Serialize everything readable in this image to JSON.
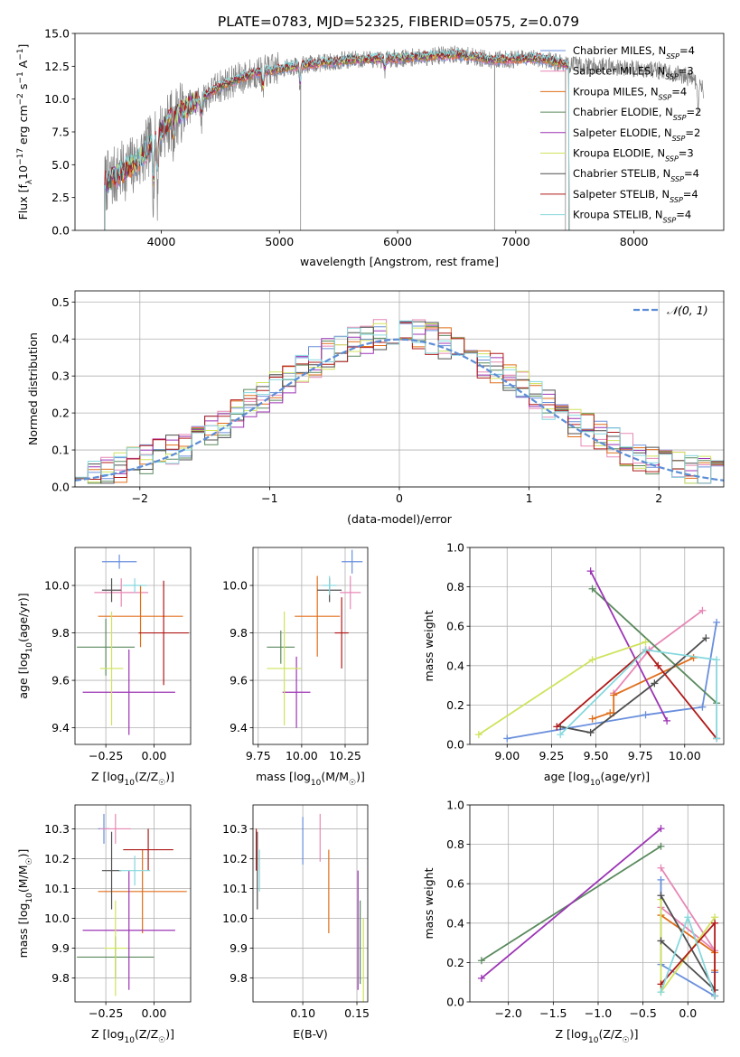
{
  "figure_title": "PLATE=0783, MJD=52325, FIBERID=0575, z=0.079",
  "colors": {
    "Chabrier MILES": "#6a8fdc",
    "Salpeter MILES": "#e787b5",
    "Kroupa MILES": "#e06e1a",
    "Chabrier ELODIE": "#5a8a5e",
    "Salpeter ELODIE": "#9c35b5",
    "Kroupa ELODIE": "#cfe35c",
    "Chabrier STELIB": "#4f4f4f",
    "Salpeter STELIB": "#b01a1a",
    "Kroupa STELIB": "#86d8dd",
    "data": "#808080",
    "normal": "#5b8dd6"
  },
  "chart_data": [
    {
      "id": "spectrum",
      "type": "line",
      "title": "PLATE=0783, MJD=52325, FIBERID=0575, z=0.079",
      "xlabel": "wavelength [Angstrom, rest frame]",
      "ylabel": "Flux [fλ10⁻¹⁷ erg cm⁻² s⁻¹ A⁻¹]",
      "xlim": [
        3270,
        8760
      ],
      "ylim": [
        0,
        15
      ],
      "xticks": [
        "4000",
        "5000",
        "6000",
        "7000",
        "8000"
      ],
      "xtick_values": [
        4000,
        5000,
        6000,
        7000,
        8000
      ],
      "yticks": [
        "0.0",
        "2.5",
        "5.0",
        "7.5",
        "10.0",
        "12.5",
        "15.0"
      ],
      "ytick_values": [
        0,
        2.5,
        5,
        7.5,
        10,
        12.5,
        15
      ],
      "legend_position": "right",
      "legend": [
        {
          "label": "Chabrier MILES, N",
          "sub": "SSP",
          "suffix": "=4",
          "key": "Chabrier MILES"
        },
        {
          "label": "Salpeter MILES, N",
          "sub": "SSP",
          "suffix": "=3",
          "key": "Salpeter MILES"
        },
        {
          "label": "Kroupa MILES, N",
          "sub": "SSP",
          "suffix": "=4",
          "key": "Kroupa MILES"
        },
        {
          "label": "Chabrier ELODIE, N",
          "sub": "SSP",
          "suffix": "=2",
          "key": "Chabrier ELODIE"
        },
        {
          "label": "Salpeter ELODIE, N",
          "sub": "SSP",
          "suffix": "=2",
          "key": "Salpeter ELODIE"
        },
        {
          "label": "Kroupa ELODIE, N",
          "sub": "SSP",
          "suffix": "=3",
          "key": "Kroupa ELODIE"
        },
        {
          "label": "Chabrier STELIB, N",
          "sub": "SSP",
          "suffix": "=4",
          "key": "Chabrier STELIB"
        },
        {
          "label": "Salpeter STELIB, N",
          "sub": "SSP",
          "suffix": "=4",
          "key": "Salpeter STELIB"
        },
        {
          "label": "Kroupa STELIB, N",
          "sub": "SSP",
          "suffix": "=4",
          "key": "Kroupa STELIB"
        }
      ],
      "continuum": [
        [
          3520,
          3.6
        ],
        [
          3800,
          5.2
        ],
        [
          3950,
          7.0
        ],
        [
          4000,
          7.6
        ],
        [
          4100,
          8.6
        ],
        [
          4300,
          9.8
        ],
        [
          4500,
          11.0
        ],
        [
          4800,
          12.0
        ],
        [
          5200,
          12.6
        ],
        [
          5600,
          13.0
        ],
        [
          6000,
          13.1
        ],
        [
          6500,
          13.4
        ],
        [
          6800,
          13.0
        ],
        [
          7200,
          13.1
        ],
        [
          7450,
          12.6
        ],
        [
          7800,
          12.5
        ],
        [
          8200,
          12.2
        ],
        [
          8500,
          11.6
        ],
        [
          8600,
          10.5
        ]
      ],
      "absorption": [
        [
          3934,
          3.5
        ],
        [
          3968,
          4.0
        ],
        [
          4101,
          1.5
        ],
        [
          4340,
          1.5
        ],
        [
          4861,
          1.5
        ],
        [
          5175,
          1.5
        ],
        [
          5890,
          1.0
        ],
        [
          8542,
          1.5
        ],
        [
          8662,
          1.5
        ]
      ],
      "spikes_down": [
        5180,
        6820,
        7420
      ],
      "model_range": [
        3520,
        7450
      ],
      "data_range": [
        3520,
        8590
      ]
    },
    {
      "id": "residual_histogram",
      "type": "step",
      "xlabel": "(data-model)/error",
      "ylabel": "Normed distribution",
      "xlim": [
        -2.5,
        2.5
      ],
      "ylim": [
        0,
        0.53
      ],
      "xticks": [
        "−2",
        "−1",
        "0",
        "1",
        "2"
      ],
      "xtick_values": [
        -2,
        -1,
        0,
        1,
        2
      ],
      "yticks": [
        "0.0",
        "0.1",
        "0.2",
        "0.3",
        "0.4",
        "0.5"
      ],
      "ytick_values": [
        0,
        0.1,
        0.2,
        0.3,
        0.4,
        0.5
      ],
      "bin_width": 0.1,
      "x_start": -2.5,
      "legend_position": "top-right",
      "legend_label": "𝒩(0, 1)"
    },
    {
      "id": "age_vs_Z",
      "type": "errorbar",
      "xlabel": "Z [log10(Z/Z☉)]",
      "ylabel": "age [log10(age/yr)]",
      "xlim": [
        -0.41,
        0.19
      ],
      "ylim": [
        9.33,
        10.16
      ],
      "xticks": [
        "−0.25",
        "0.00"
      ],
      "xtick_values": [
        -0.25,
        0.0
      ],
      "yticks": [
        "9.4",
        "9.6",
        "9.8",
        "10.0"
      ],
      "ytick_values": [
        9.4,
        9.6,
        9.8,
        10.0
      ],
      "points": [
        {
          "key": "Chabrier MILES",
          "x": -0.18,
          "xerr": 0.09,
          "y": 10.1,
          "yerr": 0.03
        },
        {
          "key": "Salpeter MILES",
          "x": -0.17,
          "xerr": 0.14,
          "y": 9.97,
          "yerr": 0.06
        },
        {
          "key": "Kroupa MILES",
          "x": -0.07,
          "xerr": 0.22,
          "y": 9.87,
          "yerr": 0.13
        },
        {
          "key": "Chabrier ELODIE",
          "x": -0.25,
          "xerr": 0.15,
          "y": 9.74,
          "yerr": 0.12
        },
        {
          "key": "Salpeter ELODIE",
          "x": -0.13,
          "xerr": 0.24,
          "y": 9.55,
          "yerr": 0.18
        },
        {
          "key": "Kroupa ELODIE",
          "x": -0.22,
          "xerr": 0.06,
          "y": 9.65,
          "yerr": 0.24
        },
        {
          "key": "Chabrier STELIB",
          "x": -0.22,
          "xerr": 0.05,
          "y": 9.98,
          "yerr": 0.05
        },
        {
          "key": "Salpeter STELIB",
          "x": 0.05,
          "xerr": 0.13,
          "y": 9.8,
          "yerr": 0.22
        },
        {
          "key": "Kroupa STELIB",
          "x": -0.1,
          "xerr": 0.06,
          "y": 10.0,
          "yerr": 0.03
        }
      ]
    },
    {
      "id": "age_vs_mass",
      "type": "errorbar",
      "xlabel": "mass [log10(M/M☉)]",
      "ylabel": "",
      "xlim": [
        9.72,
        10.38
      ],
      "ylim": [
        9.33,
        10.16
      ],
      "xticks": [
        "9.75",
        "10.00",
        "10.25"
      ],
      "xtick_values": [
        9.75,
        10.0,
        10.25
      ],
      "yticks": [
        "9.4",
        "9.6",
        "9.8",
        "10.0"
      ],
      "ytick_values": [
        9.4,
        9.6,
        9.8,
        10.0
      ],
      "points": [
        {
          "key": "Chabrier MILES",
          "x": 10.29,
          "xerr": 0.06,
          "y": 10.1,
          "yerr": 0.05
        },
        {
          "key": "Salpeter MILES",
          "x": 10.28,
          "xerr": 0.06,
          "y": 9.97,
          "yerr": 0.07
        },
        {
          "key": "Kroupa MILES",
          "x": 10.09,
          "xerr": 0.13,
          "y": 9.87,
          "yerr": 0.17
        },
        {
          "key": "Chabrier ELODIE",
          "x": 9.88,
          "xerr": 0.08,
          "y": 9.74,
          "yerr": 0.07
        },
        {
          "key": "Salpeter ELODIE",
          "x": 9.97,
          "xerr": 0.08,
          "y": 9.55,
          "yerr": 0.15
        },
        {
          "key": "Kroupa ELODIE",
          "x": 9.9,
          "xerr": 0.1,
          "y": 9.65,
          "yerr": 0.24
        },
        {
          "key": "Chabrier STELIB",
          "x": 10.16,
          "xerr": 0.07,
          "y": 9.98,
          "yerr": 0.05
        },
        {
          "key": "Salpeter STELIB",
          "x": 10.23,
          "xerr": 0.04,
          "y": 9.8,
          "yerr": 0.15
        },
        {
          "key": "Kroupa STELIB",
          "x": 10.16,
          "xerr": 0.04,
          "y": 10.0,
          "yerr": 0.04
        }
      ]
    },
    {
      "id": "weight_vs_age",
      "type": "line",
      "xlabel": "age [log10(age/yr)]",
      "ylabel": "mass weight",
      "xlim": [
        8.79,
        10.22
      ],
      "ylim": [
        0,
        1.0
      ],
      "xticks": [
        "9.00",
        "9.25",
        "9.50",
        "9.75",
        "10.00"
      ],
      "xtick_values": [
        9.0,
        9.25,
        9.5,
        9.75,
        10.0
      ],
      "yticks": [
        "0.0",
        "0.2",
        "0.4",
        "0.6",
        "0.8",
        "1.0"
      ],
      "ytick_values": [
        0,
        0.2,
        0.4,
        0.6,
        0.8,
        1.0
      ],
      "series": [
        {
          "key": "Chabrier MILES",
          "x": [
            9.0,
            9.78,
            10.1,
            10.18
          ],
          "y": [
            0.03,
            0.15,
            0.19,
            0.62
          ]
        },
        {
          "key": "Salpeter MILES",
          "x": [
            9.6,
            9.8,
            10.1
          ],
          "y": [
            0.26,
            0.48,
            0.68
          ]
        },
        {
          "key": "Kroupa MILES",
          "x": [
            9.48,
            9.58,
            9.6,
            9.6,
            10.05
          ],
          "y": [
            0.13,
            0.16,
            0.16,
            0.25,
            0.44
          ]
        },
        {
          "key": "Chabrier ELODIE",
          "x": [
            9.48,
            10.18
          ],
          "y": [
            0.79,
            0.21
          ]
        },
        {
          "key": "Salpeter ELODIE",
          "x": [
            9.47,
            9.9
          ],
          "y": [
            0.88,
            0.12
          ]
        },
        {
          "key": "Kroupa ELODIE",
          "x": [
            8.84,
            9.48,
            9.78
          ],
          "y": [
            0.05,
            0.43,
            0.52
          ]
        },
        {
          "key": "Chabrier STELIB",
          "x": [
            9.3,
            9.47,
            9.83,
            10.12
          ],
          "y": [
            0.09,
            0.06,
            0.31,
            0.54
          ]
        },
        {
          "key": "Salpeter STELIB",
          "x": [
            9.28,
            9.78,
            9.85,
            10.18
          ],
          "y": [
            0.09,
            0.48,
            0.4,
            0.03
          ]
        },
        {
          "key": "Kroupa STELIB",
          "x": [
            9.3,
            9.78,
            10.18,
            10.18
          ],
          "y": [
            0.05,
            0.48,
            0.43,
            0.03
          ]
        }
      ]
    },
    {
      "id": "mass_vs_Z",
      "type": "errorbar",
      "xlabel": "Z [log10(Z/Z☉)]",
      "ylabel": "mass [log10(M/M☉)]",
      "xlim": [
        -0.41,
        0.19
      ],
      "ylim": [
        9.72,
        10.38
      ],
      "xticks": [
        "−0.25",
        "0.00"
      ],
      "xtick_values": [
        -0.25,
        0.0
      ],
      "yticks": [
        "9.8",
        "9.9",
        "10.0",
        "10.1",
        "10.2",
        "10.3"
      ],
      "ytick_values": [
        9.8,
        9.9,
        10.0,
        10.1,
        10.2,
        10.3
      ],
      "points": [
        {
          "key": "Chabrier MILES",
          "x": -0.26,
          "xerr": 0.03,
          "y": 10.3,
          "yerr": 0.05
        },
        {
          "key": "Salpeter MILES",
          "x": -0.2,
          "xerr": 0.08,
          "y": 10.3,
          "yerr": 0.05
        },
        {
          "key": "Kroupa MILES",
          "x": -0.06,
          "xerr": 0.23,
          "y": 10.09,
          "yerr": 0.14
        },
        {
          "key": "Chabrier ELODIE",
          "x": -0.2,
          "xerr": 0.2,
          "y": 9.87,
          "yerr": 0.07
        },
        {
          "key": "Salpeter ELODIE",
          "x": -0.13,
          "xerr": 0.24,
          "y": 9.96,
          "yerr": 0.2
        },
        {
          "key": "Kroupa ELODIE",
          "x": -0.2,
          "xerr": 0.06,
          "y": 9.9,
          "yerr": 0.16
        },
        {
          "key": "Chabrier STELIB",
          "x": -0.22,
          "xerr": 0.05,
          "y": 10.16,
          "yerr": 0.13
        },
        {
          "key": "Salpeter STELIB",
          "x": -0.03,
          "xerr": 0.13,
          "y": 10.23,
          "yerr": 0.07
        },
        {
          "key": "Kroupa STELIB",
          "x": -0.1,
          "xerr": 0.08,
          "y": 10.16,
          "yerr": 0.05
        }
      ]
    },
    {
      "id": "mass_vs_EBV",
      "type": "errorbar",
      "xlabel": "E(B-V)",
      "ylabel": "",
      "xlim": [
        0.054,
        0.16
      ],
      "ylim": [
        9.72,
        10.38
      ],
      "xticks": [
        "0.10",
        "0.15"
      ],
      "xtick_values": [
        0.1,
        0.15
      ],
      "yticks": [
        "9.8",
        "9.9",
        "10.0",
        "10.1",
        "10.2",
        "10.3"
      ],
      "ytick_values": [
        9.8,
        9.9,
        10.0,
        10.1,
        10.2,
        10.3
      ],
      "points": [
        {
          "key": "Chabrier MILES",
          "x": 0.1,
          "xerr": 0,
          "y": 10.26,
          "yerr": 0.08
        },
        {
          "key": "Salpeter MILES",
          "x": 0.116,
          "xerr": 0,
          "y": 10.27,
          "yerr": 0.08
        },
        {
          "key": "Kroupa MILES",
          "x": 0.124,
          "xerr": 0,
          "y": 10.09,
          "yerr": 0.14
        },
        {
          "key": "Chabrier ELODIE",
          "x": 0.153,
          "xerr": 0,
          "y": 9.92,
          "yerr": 0.14
        },
        {
          "key": "Salpeter ELODIE",
          "x": 0.151,
          "xerr": 0,
          "y": 9.96,
          "yerr": 0.2
        },
        {
          "key": "Kroupa ELODIE",
          "x": 0.156,
          "xerr": 0,
          "y": 9.86,
          "yerr": 0.14
        },
        {
          "key": "Chabrier STELIB",
          "x": 0.058,
          "xerr": 0,
          "y": 10.16,
          "yerr": 0.13
        },
        {
          "key": "Salpeter STELIB",
          "x": 0.057,
          "xerr": 0,
          "y": 10.23,
          "yerr": 0.07
        },
        {
          "key": "Kroupa STELIB",
          "x": 0.06,
          "xerr": 0,
          "y": 10.16,
          "yerr": 0.07
        }
      ]
    },
    {
      "id": "weight_vs_Z",
      "type": "line",
      "xlabel": "Z [log10(Z/Z☉)]",
      "ylabel": "mass weight",
      "xlim": [
        -2.43,
        0.4
      ],
      "ylim": [
        0,
        1.0
      ],
      "xticks": [
        "−2.0",
        "−1.5",
        "−1.0",
        "−0.5",
        "0.0"
      ],
      "xtick_values": [
        -2.0,
        -1.5,
        -1.0,
        -0.5,
        0.0
      ],
      "yticks": [
        "0.0",
        "0.2",
        "0.4",
        "0.6",
        "0.8",
        "1.0"
      ],
      "ytick_values": [
        0,
        0.2,
        0.4,
        0.6,
        0.8,
        1.0
      ],
      "series": [
        {
          "key": "Chabrier MILES",
          "x": [
            -0.3,
            -0.3,
            0.3,
            0.3
          ],
          "y": [
            0.62,
            0.19,
            0.03,
            0.15
          ]
        },
        {
          "key": "Salpeter MILES",
          "x": [
            -0.3,
            0.3,
            -0.3
          ],
          "y": [
            0.68,
            0.26,
            0.48
          ]
        },
        {
          "key": "Kroupa MILES",
          "x": [
            -0.3,
            0.3,
            0.3
          ],
          "y": [
            0.44,
            0.25,
            0.16
          ]
        },
        {
          "key": "Chabrier ELODIE",
          "x": [
            -2.3,
            -0.3
          ],
          "y": [
            0.21,
            0.79
          ]
        },
        {
          "key": "Salpeter ELODIE",
          "x": [
            -2.3,
            -0.3
          ],
          "y": [
            0.12,
            0.88
          ]
        },
        {
          "key": "Kroupa ELODIE",
          "x": [
            -0.3,
            -0.3,
            0.3
          ],
          "y": [
            0.52,
            0.05,
            0.43
          ]
        },
        {
          "key": "Chabrier STELIB",
          "x": [
            -0.3,
            0.3,
            -0.3
          ],
          "y": [
            0.54,
            0.06,
            0.31
          ]
        },
        {
          "key": "Salpeter STELIB",
          "x": [
            -0.3,
            0.3,
            0.3
          ],
          "y": [
            0.09,
            0.4,
            0.03
          ]
        },
        {
          "key": "Kroupa STELIB",
          "x": [
            -0.3,
            0.0,
            0.3
          ],
          "y": [
            0.05,
            0.43,
            0.03
          ]
        }
      ]
    }
  ]
}
